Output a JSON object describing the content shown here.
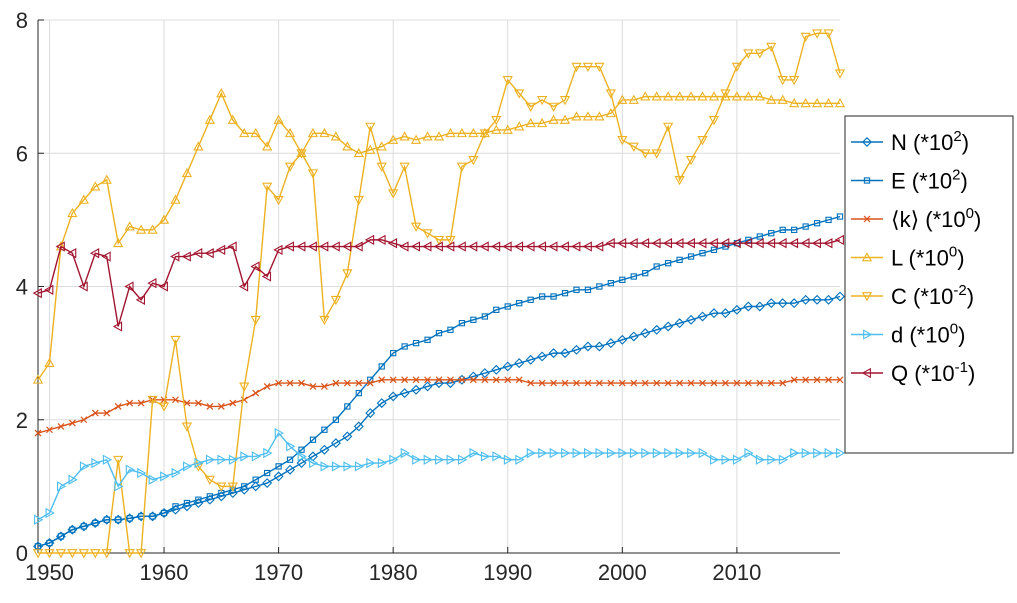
{
  "chart_data": {
    "type": "line",
    "title": "",
    "xlabel": "",
    "ylabel": "",
    "xlim": [
      1949,
      2019
    ],
    "ylim": [
      0,
      8
    ],
    "xticks": [
      1950,
      1960,
      1970,
      1980,
      1990,
      2000,
      2010
    ],
    "yticks": [
      0,
      2,
      4,
      6,
      8
    ],
    "grid": true,
    "legend_position": "right",
    "x": [
      1949,
      1950,
      1951,
      1952,
      1953,
      1954,
      1955,
      1956,
      1957,
      1958,
      1959,
      1960,
      1961,
      1962,
      1963,
      1964,
      1965,
      1966,
      1967,
      1968,
      1969,
      1970,
      1971,
      1972,
      1973,
      1974,
      1975,
      1976,
      1977,
      1978,
      1979,
      1980,
      1981,
      1982,
      1983,
      1984,
      1985,
      1986,
      1987,
      1988,
      1989,
      1990,
      1991,
      1992,
      1993,
      1994,
      1995,
      1996,
      1997,
      1998,
      1999,
      2000,
      2001,
      2002,
      2003,
      2004,
      2005,
      2006,
      2007,
      2008,
      2009,
      2010,
      2011,
      2012,
      2013,
      2014,
      2015,
      2016,
      2017,
      2018,
      2019
    ],
    "series": [
      {
        "name": "N (*10^2)",
        "legend_main": "N (*10",
        "legend_exp": "2",
        "color": "#0072BD",
        "marker": "diamond",
        "values": [
          0.1,
          0.15,
          0.25,
          0.35,
          0.4,
          0.45,
          0.5,
          0.5,
          0.52,
          0.55,
          0.55,
          0.6,
          0.65,
          0.7,
          0.75,
          0.8,
          0.85,
          0.9,
          0.95,
          1.0,
          1.05,
          1.15,
          1.25,
          1.35,
          1.45,
          1.55,
          1.65,
          1.75,
          1.9,
          2.1,
          2.25,
          2.35,
          2.4,
          2.45,
          2.5,
          2.55,
          2.55,
          2.6,
          2.65,
          2.7,
          2.75,
          2.8,
          2.85,
          2.9,
          2.95,
          3.0,
          3.0,
          3.05,
          3.1,
          3.1,
          3.15,
          3.2,
          3.25,
          3.3,
          3.35,
          3.4,
          3.45,
          3.5,
          3.55,
          3.6,
          3.6,
          3.65,
          3.7,
          3.7,
          3.75,
          3.75,
          3.75,
          3.8,
          3.8,
          3.8,
          3.85
        ]
      },
      {
        "name": "E (*10^2)",
        "legend_main": "E (*10",
        "legend_exp": "2",
        "color": "#0072BD",
        "marker": "square",
        "values": [
          0.1,
          0.15,
          0.25,
          0.35,
          0.4,
          0.45,
          0.5,
          0.5,
          0.52,
          0.55,
          0.55,
          0.6,
          0.7,
          0.75,
          0.8,
          0.85,
          0.9,
          0.95,
          1.0,
          1.1,
          1.2,
          1.3,
          1.4,
          1.55,
          1.7,
          1.85,
          2.0,
          2.2,
          2.4,
          2.6,
          2.8,
          3.0,
          3.1,
          3.15,
          3.2,
          3.3,
          3.35,
          3.45,
          3.5,
          3.55,
          3.65,
          3.7,
          3.75,
          3.8,
          3.85,
          3.85,
          3.9,
          3.95,
          3.95,
          4.0,
          4.05,
          4.1,
          4.15,
          4.2,
          4.3,
          4.35,
          4.4,
          4.45,
          4.5,
          4.55,
          4.6,
          4.65,
          4.7,
          4.75,
          4.8,
          4.85,
          4.85,
          4.9,
          4.95,
          5.0,
          5.05
        ]
      },
      {
        "name": "⟨k⟩ (*10^0)",
        "legend_main": "⟨k⟩ (*10",
        "legend_exp": "0",
        "color": "#D95319",
        "marker": "x",
        "values": [
          1.8,
          1.85,
          1.9,
          1.95,
          2.0,
          2.1,
          2.1,
          2.2,
          2.25,
          2.25,
          2.3,
          2.3,
          2.3,
          2.25,
          2.25,
          2.2,
          2.2,
          2.25,
          2.3,
          2.4,
          2.5,
          2.55,
          2.55,
          2.55,
          2.5,
          2.5,
          2.55,
          2.55,
          2.55,
          2.55,
          2.6,
          2.6,
          2.6,
          2.6,
          2.6,
          2.6,
          2.6,
          2.6,
          2.6,
          2.6,
          2.6,
          2.6,
          2.6,
          2.55,
          2.55,
          2.55,
          2.55,
          2.55,
          2.55,
          2.55,
          2.55,
          2.55,
          2.55,
          2.55,
          2.55,
          2.55,
          2.55,
          2.55,
          2.55,
          2.55,
          2.55,
          2.55,
          2.55,
          2.55,
          2.55,
          2.55,
          2.6,
          2.6,
          2.6,
          2.6,
          2.6
        ]
      },
      {
        "name": "L (*10^0)",
        "legend_main": "L (*10",
        "legend_exp": "0",
        "color": "#EDB120",
        "marker": "triangle-up",
        "values": [
          2.6,
          2.85,
          4.6,
          5.1,
          5.3,
          5.5,
          5.6,
          4.65,
          4.9,
          4.85,
          4.85,
          5.0,
          5.3,
          5.7,
          6.1,
          6.5,
          6.9,
          6.5,
          6.3,
          6.3,
          6.1,
          6.5,
          6.3,
          6.0,
          6.3,
          6.3,
          6.25,
          6.1,
          6.0,
          6.05,
          6.1,
          6.2,
          6.25,
          6.2,
          6.25,
          6.25,
          6.3,
          6.3,
          6.3,
          6.3,
          6.35,
          6.35,
          6.4,
          6.45,
          6.45,
          6.5,
          6.5,
          6.55,
          6.55,
          6.55,
          6.6,
          6.8,
          6.8,
          6.85,
          6.85,
          6.85,
          6.85,
          6.85,
          6.85,
          6.85,
          6.85,
          6.85,
          6.85,
          6.85,
          6.8,
          6.8,
          6.75,
          6.75,
          6.75,
          6.75,
          6.75
        ]
      },
      {
        "name": "C (*10^-2)",
        "legend_main": "C (*10",
        "legend_exp": "-2",
        "color": "#EDB120",
        "marker": "triangle-down",
        "values": [
          0.0,
          0.0,
          0.0,
          0.0,
          0.0,
          0.0,
          0.0,
          1.4,
          0.0,
          0.0,
          2.3,
          2.2,
          3.2,
          1.9,
          1.3,
          1.1,
          1.0,
          1.0,
          2.5,
          3.5,
          5.5,
          5.3,
          5.8,
          6.0,
          5.7,
          3.5,
          3.8,
          4.2,
          5.3,
          6.4,
          5.8,
          5.4,
          5.8,
          4.9,
          4.8,
          4.7,
          4.7,
          5.8,
          5.9,
          6.3,
          6.5,
          7.1,
          6.9,
          6.7,
          6.8,
          6.7,
          6.8,
          7.3,
          7.3,
          7.3,
          6.9,
          6.2,
          6.1,
          6.0,
          6.0,
          6.4,
          5.6,
          5.9,
          6.2,
          6.5,
          6.9,
          7.3,
          7.5,
          7.5,
          7.6,
          7.1,
          7.1,
          7.75,
          7.8,
          7.8,
          7.2
        ]
      },
      {
        "name": "d (*10^0)",
        "legend_main": "d (*10",
        "legend_exp": "0",
        "color": "#4DBEEE",
        "marker": "triangle-right",
        "values": [
          0.5,
          0.6,
          1.0,
          1.1,
          1.3,
          1.35,
          1.4,
          1.0,
          1.25,
          1.2,
          1.1,
          1.15,
          1.2,
          1.3,
          1.35,
          1.4,
          1.4,
          1.4,
          1.45,
          1.45,
          1.5,
          1.8,
          1.6,
          1.45,
          1.35,
          1.3,
          1.3,
          1.3,
          1.3,
          1.35,
          1.35,
          1.4,
          1.5,
          1.4,
          1.4,
          1.4,
          1.4,
          1.4,
          1.5,
          1.45,
          1.45,
          1.4,
          1.4,
          1.5,
          1.5,
          1.5,
          1.5,
          1.5,
          1.5,
          1.5,
          1.5,
          1.5,
          1.5,
          1.5,
          1.5,
          1.5,
          1.5,
          1.5,
          1.5,
          1.4,
          1.4,
          1.4,
          1.5,
          1.4,
          1.4,
          1.4,
          1.5,
          1.5,
          1.5,
          1.5,
          1.5
        ]
      },
      {
        "name": "Q (*10^-1)",
        "legend_main": "Q (*10",
        "legend_exp": "-1",
        "color": "#A2142F",
        "marker": "triangle-left",
        "values": [
          3.9,
          3.95,
          4.6,
          4.5,
          4.0,
          4.5,
          4.45,
          3.4,
          4.0,
          3.8,
          4.05,
          4.0,
          4.45,
          4.45,
          4.5,
          4.5,
          4.55,
          4.6,
          4.0,
          4.3,
          4.15,
          4.55,
          4.6,
          4.6,
          4.6,
          4.6,
          4.6,
          4.6,
          4.6,
          4.7,
          4.7,
          4.65,
          4.6,
          4.6,
          4.6,
          4.6,
          4.6,
          4.6,
          4.6,
          4.6,
          4.6,
          4.6,
          4.6,
          4.6,
          4.6,
          4.6,
          4.6,
          4.6,
          4.6,
          4.6,
          4.65,
          4.65,
          4.65,
          4.65,
          4.65,
          4.65,
          4.65,
          4.65,
          4.65,
          4.65,
          4.65,
          4.65,
          4.65,
          4.65,
          4.65,
          4.65,
          4.65,
          4.65,
          4.65,
          4.65,
          4.7
        ]
      }
    ]
  }
}
